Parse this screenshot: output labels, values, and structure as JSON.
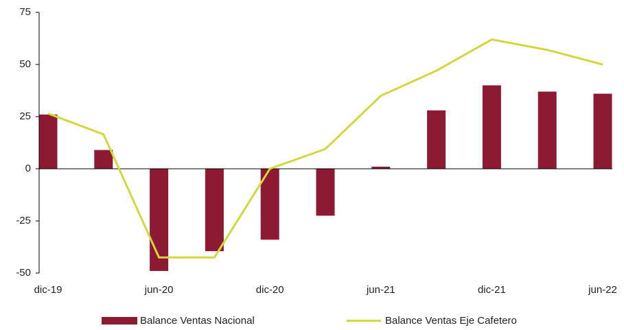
{
  "chart_data": {
    "type": "bar_line",
    "categories": [
      "dic-19",
      null,
      "jun-20",
      null,
      "dic-20",
      null,
      "jun-21",
      null,
      "dic-21",
      null,
      "jun-22"
    ],
    "series": [
      {
        "name": "Balance Ventas Nacional",
        "type": "bar",
        "color": "#8b1a32",
        "values": [
          26,
          9,
          -49,
          -39.5,
          -34,
          -22.5,
          1,
          28,
          40,
          37,
          36
        ]
      },
      {
        "name": "Balance Ventas Eje Cafetero",
        "type": "line",
        "color": "#d2d83c",
        "values": [
          26.5,
          16.5,
          -42.5,
          -42.5,
          0,
          9.5,
          35,
          47,
          62,
          57,
          50
        ]
      }
    ],
    "ylim": [
      -50,
      75
    ],
    "yticks": [
      -50,
      -25,
      0,
      25,
      50,
      75
    ],
    "legend": "bottom"
  }
}
